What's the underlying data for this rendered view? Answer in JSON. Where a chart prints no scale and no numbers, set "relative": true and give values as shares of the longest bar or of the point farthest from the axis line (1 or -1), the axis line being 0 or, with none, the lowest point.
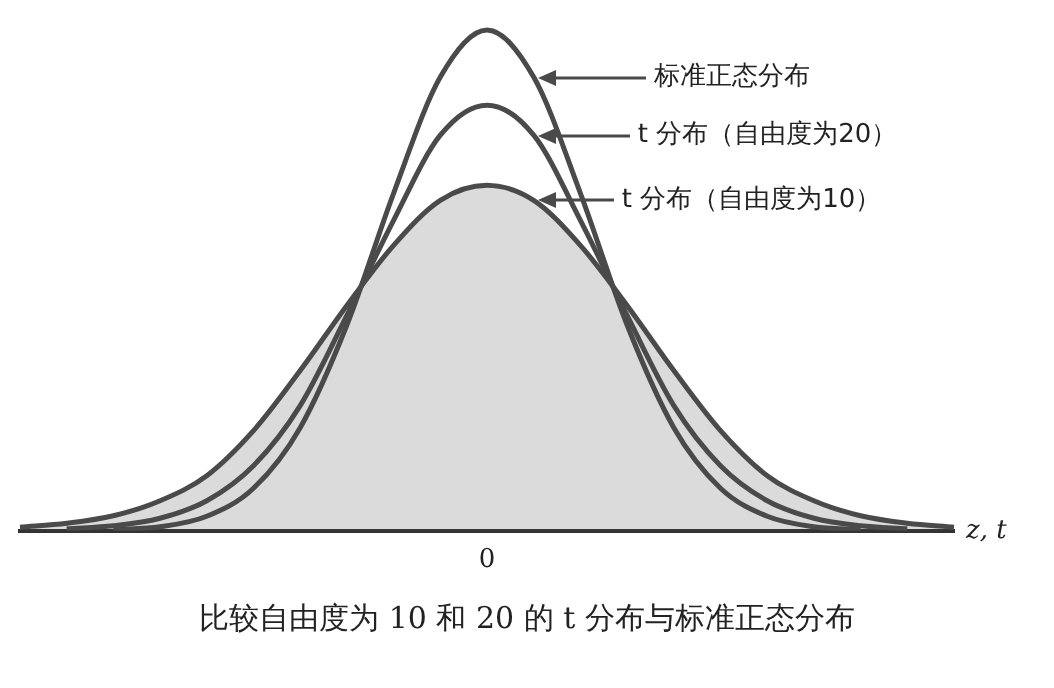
{
  "chart_data": {
    "type": "line",
    "relative": true,
    "xlabel": "z, t",
    "legend": "top right",
    "grid": false,
    "categories": [
      null,
      null,
      null,
      null,
      null,
      null,
      null,
      null,
      null,
      null,
      null,
      null,
      null,
      null,
      null,
      null,
      null,
      null,
      null,
      null,
      null
    ],
    "series": [
      {
        "name": "t 分布（自由度为10）",
        "type": "area",
        "color": "#4a4a4a",
        "values": [
          0.007,
          0.015,
          0.03,
          0.06,
          0.11,
          0.2,
          0.32,
          0.45,
          0.57,
          0.66,
          0.69,
          0.66,
          0.57,
          0.45,
          0.32,
          0.2,
          0.11,
          0.06,
          0.03,
          0.015,
          0.007
        ]
      },
      {
        "name": "t 分布（自由度为20）",
        "color": "#4a4a4a",
        "values": [
          null,
          0.004,
          0.01,
          0.025,
          0.06,
          0.13,
          0.25,
          0.43,
          0.62,
          0.79,
          0.85,
          0.79,
          0.62,
          0.43,
          0.25,
          0.13,
          0.06,
          0.025,
          0.01,
          0.004,
          null
        ]
      },
      {
        "name": "标准正态分布",
        "color": "#4a4a4a",
        "values": [
          null,
          null,
          0.002,
          0.008,
          0.029,
          0.085,
          0.206,
          0.411,
          0.674,
          0.906,
          1,
          0.906,
          0.674,
          0.411,
          0.206,
          0.085,
          0.029,
          0.008,
          0.002,
          null,
          null
        ]
      }
    ],
    "annotations": [
      "0",
      "比较自由度为 10 和 20 的 t 分布与标准正态分布"
    ]
  }
}
